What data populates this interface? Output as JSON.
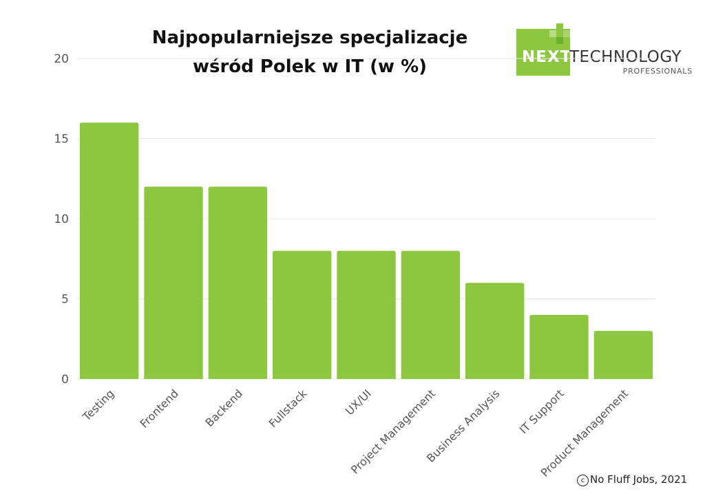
{
  "chart_data": {
    "type": "bar",
    "title_lines": [
      "Najpopularniejsze specjalizacje",
      "wśród Polek w IT (w %)"
    ],
    "categories": [
      "Testing",
      "Frontend",
      "Backend",
      "Fullstack",
      "UX/UI",
      "Project Management",
      "Business Analysis",
      "IT Support",
      "Product Management"
    ],
    "values": [
      16,
      12,
      12,
      8,
      8,
      8,
      6,
      4,
      3
    ],
    "xlabel": "",
    "ylabel": "",
    "ylim": [
      0,
      20
    ],
    "yticks": [
      "0",
      "5",
      "10",
      "15",
      "20"
    ],
    "grid": true,
    "legend": "none",
    "bar_color": "#8dc63f",
    "grid_color": "#e6e6e6"
  },
  "logo": {
    "wordmark_next": "NEXT",
    "wordmark_technology": "TECHNOLOGY",
    "wordmark_professionals": "PROFESSIONALS",
    "accent_color": "#8dc63f"
  },
  "credit": {
    "symbol": "c",
    "text": "No Fluff Jobs, 2021"
  }
}
